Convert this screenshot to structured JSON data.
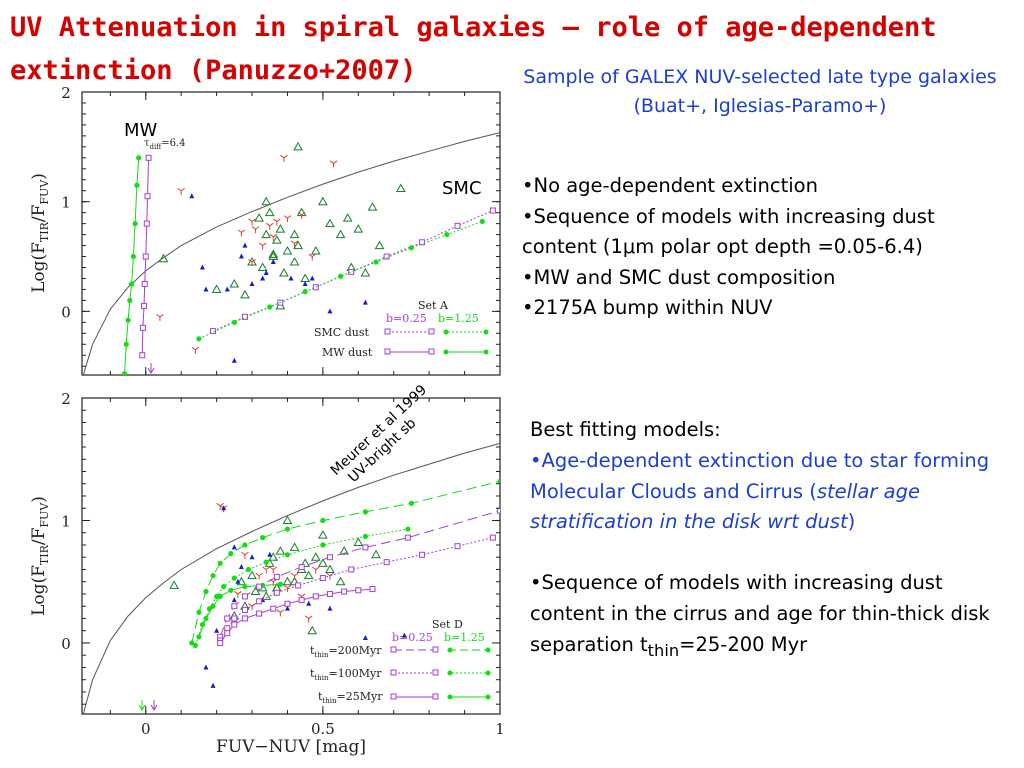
{
  "slide": {
    "title": "UV Attenuation in spiral galaxies – role of age-dependent extinction (Panuzzo+2007)",
    "subtitle": "Sample of GALEX NUV-selected late type galaxies (Buat+, Iglesias-Paramo+)",
    "bullets": [
      "•No age-dependent extinction",
      "•Sequence of models with increasing dust content (1μm polar opt depth =0.05-6.4)",
      "•MW and SMC dust composition",
      "•2175A bump within NUV"
    ],
    "best_heading": "Best fitting models:",
    "best_item1_a": "•Age-dependent extinction due to star forming Molecular Clouds and Cirrus (",
    "best_item1_b": "stellar age stratification in the disk wrt dust",
    "best_item1_c": ")",
    "best_item2_a": "•Sequence of models with increasing dust content in the cirrus and age for thin-thick disk separation t",
    "best_item2_sub": "thin",
    "best_item2_b": "=25-200 Myr"
  },
  "colors": {
    "title": "#d50000",
    "blue_text": "#1a3fd1",
    "green": "#13dd13",
    "purple": "#a63ed8",
    "triangle_green": "#137f2a",
    "dark_blue": "#1220c8",
    "red": "#e03a2e",
    "curve": "#555555"
  },
  "chart_data": [
    {
      "type": "scatter",
      "panel": "top",
      "ylabel_main": "Log(F",
      "ylabel_sub1": "TIR",
      "ylabel_mid": "/F",
      "ylabel_sub2": "FUV",
      "ylabel_end": ")",
      "xlim": [
        -0.18,
        1.0
      ],
      "ylim": [
        -0.58,
        2.0
      ],
      "yticks": [
        0,
        1,
        2
      ],
      "ytick_labels": [
        "0",
        "1",
        "2"
      ],
      "labels": {
        "mw": "MW",
        "smc": "SMC",
        "tau_pre": "τ",
        "tau_sub": "diff",
        "tau_post": "=6.4"
      },
      "legend": {
        "set": "Set A",
        "b1": "b=0.25",
        "b2": "b=1.25",
        "row1": "SMC dust",
        "row2": "MW dust"
      },
      "meurer_curve": {
        "x": [
          -0.18,
          -0.15,
          -0.1,
          -0.05,
          0.0,
          0.05,
          0.1,
          0.2,
          0.3,
          0.4,
          0.5,
          0.6,
          0.7,
          0.8,
          0.9,
          1.0
        ],
        "y": [
          -0.62,
          -0.3,
          0.02,
          0.22,
          0.37,
          0.49,
          0.6,
          0.77,
          0.91,
          1.04,
          1.16,
          1.27,
          1.37,
          1.46,
          1.55,
          1.63
        ]
      },
      "series": [
        {
          "name": "MW dust b=1.25",
          "color_key": "green",
          "marker": "dot",
          "dash": "",
          "x": [
            -0.06,
            -0.055,
            -0.05,
            -0.045,
            -0.04,
            -0.035,
            -0.03,
            -0.025,
            -0.02
          ],
          "y": [
            -0.57,
            -0.3,
            -0.08,
            0.1,
            0.25,
            0.5,
            0.8,
            1.15,
            1.4
          ]
        },
        {
          "name": "MW dust b=0.25",
          "color_key": "purple",
          "marker": "square",
          "dash": "",
          "x": [
            -0.01,
            -0.008,
            -0.005,
            -0.003,
            0.0,
            0.003,
            0.005,
            0.008
          ],
          "y": [
            -0.4,
            -0.15,
            0.05,
            0.25,
            0.5,
            0.8,
            1.05,
            1.4
          ]
        },
        {
          "name": "SMC dust b=0.25",
          "color_key": "purple",
          "marker": "square",
          "dash": "2 2",
          "x": [
            0.19,
            0.28,
            0.38,
            0.48,
            0.58,
            0.68,
            0.78,
            0.88,
            0.98
          ],
          "y": [
            -0.18,
            -0.05,
            0.08,
            0.22,
            0.36,
            0.5,
            0.63,
            0.78,
            0.92
          ]
        },
        {
          "name": "SMC dust b=1.25",
          "color_key": "green",
          "marker": "dot",
          "dash": "2 2",
          "x": [
            0.15,
            0.25,
            0.35,
            0.45,
            0.55,
            0.65,
            0.75,
            0.85,
            0.95
          ],
          "y": [
            -0.25,
            -0.1,
            0.04,
            0.18,
            0.32,
            0.45,
            0.58,
            0.7,
            0.82
          ]
        }
      ],
      "points": {
        "triangles_green": {
          "x": [
            0.05,
            0.36,
            0.43,
            0.32,
            0.35,
            0.34,
            0.37,
            0.38,
            0.4,
            0.43,
            0.3,
            0.33,
            0.36,
            0.39,
            0.42,
            0.45,
            0.48,
            0.52,
            0.55,
            0.58,
            0.62,
            0.66,
            0.2,
            0.25,
            0.28,
            0.44,
            0.5,
            0.57,
            0.6,
            0.64,
            0.72,
            0.42,
            0.38,
            0.34
          ],
          "y": [
            0.48,
            0.52,
            1.5,
            0.85,
            0.9,
            0.7,
            0.65,
            0.75,
            0.55,
            0.6,
            0.45,
            0.4,
            0.5,
            0.35,
            0.45,
            0.3,
            0.55,
            0.8,
            0.7,
            0.4,
            0.35,
            0.6,
            0.2,
            0.25,
            0.15,
            0.9,
            1.0,
            0.85,
            0.75,
            0.95,
            1.12,
            0.7,
            0.05,
            1.0
          ]
        },
        "tripods_red": {
          "x": [
            0.39,
            0.53,
            0.1,
            0.04,
            0.14,
            0.3,
            0.31,
            0.33,
            0.36,
            0.4,
            0.44,
            0.47,
            0.3,
            0.27,
            0.42,
            0.37,
            0.35
          ],
          "y": [
            1.4,
            1.35,
            1.1,
            -0.05,
            -0.35,
            0.82,
            0.75,
            0.6,
            0.68,
            0.85,
            0.88,
            0.5,
            0.45,
            0.72,
            0.62,
            0.82,
            0.78
          ]
        },
        "triangles_blue": {
          "x": [
            0.13,
            0.16,
            0.17,
            0.23,
            0.27,
            0.3,
            0.34,
            0.41,
            0.45,
            0.47,
            0.52,
            0.62,
            0.28,
            0.33,
            0.25,
            0.36
          ],
          "y": [
            1.05,
            0.4,
            0.2,
            0.2,
            0.5,
            0.25,
            0.35,
            0.3,
            0.25,
            0.3,
            0.0,
            0.08,
            0.6,
            0.3,
            -0.45,
            0.45
          ]
        }
      }
    },
    {
      "type": "scatter",
      "panel": "bottom",
      "ylabel_main": "Log(F",
      "ylabel_sub1": "TIR",
      "ylabel_mid": "/F",
      "ylabel_sub2": "FUV",
      "ylabel_end": ")",
      "xlabel": "FUV−NUV [mag]",
      "xlim": [
        -0.18,
        1.0
      ],
      "ylim": [
        -0.58,
        2.0
      ],
      "xticks": [
        0,
        0.5,
        1
      ],
      "xtick_labels": [
        "0",
        "0.5",
        "1"
      ],
      "yticks": [
        0,
        1,
        2
      ],
      "ytick_labels": [
        "0",
        "1",
        "2"
      ],
      "annotation": {
        "line1": "Meurer et al 1999",
        "line2": "UV-bright sb"
      },
      "legend": {
        "set": "Set D",
        "b1": "b=0.25",
        "b2": "b=1.25",
        "rows": [
          {
            "t": "t",
            "sub": "thin",
            "rest": "=200Myr"
          },
          {
            "t": "t",
            "sub": "thin",
            "rest": "=100Myr"
          },
          {
            "t": "t",
            "sub": "thin",
            "rest": "=25Myr"
          }
        ]
      },
      "meurer_curve": {
        "x": [
          -0.18,
          -0.15,
          -0.1,
          -0.05,
          0.0,
          0.05,
          0.1,
          0.2,
          0.3,
          0.4,
          0.5,
          0.6,
          0.7,
          0.8,
          0.9,
          1.0
        ],
        "y": [
          -0.62,
          -0.3,
          0.02,
          0.22,
          0.37,
          0.49,
          0.6,
          0.77,
          0.91,
          1.04,
          1.16,
          1.27,
          1.37,
          1.46,
          1.55,
          1.63
        ]
      },
      "series": [
        {
          "name": "t_thin=200Myr b=1.25",
          "color_key": "green",
          "marker": "dot",
          "dash": "10 5",
          "x": [
            0.13,
            0.15,
            0.17,
            0.19,
            0.21,
            0.24,
            0.28,
            0.33,
            0.4,
            0.5,
            0.62,
            0.75,
            1.0
          ],
          "y": [
            0.0,
            0.25,
            0.42,
            0.55,
            0.65,
            0.73,
            0.8,
            0.86,
            0.93,
            1.0,
            1.07,
            1.14,
            1.32
          ]
        },
        {
          "name": "t_thin=100Myr b=1.25",
          "color_key": "green",
          "marker": "dot",
          "dash": "2 2",
          "x": [
            0.14,
            0.16,
            0.18,
            0.2,
            0.22,
            0.25,
            0.29,
            0.34,
            0.4,
            0.5,
            0.62,
            0.74
          ],
          "y": [
            -0.02,
            0.15,
            0.28,
            0.38,
            0.46,
            0.53,
            0.6,
            0.66,
            0.72,
            0.8,
            0.87,
            0.93
          ]
        },
        {
          "name": "t_thin=25Myr b=1.25",
          "color_key": "green",
          "marker": "dot",
          "dash": "",
          "x": [
            0.15,
            0.17,
            0.19,
            0.21,
            0.24,
            0.28,
            0.33,
            0.38
          ],
          "y": [
            0.05,
            0.2,
            0.3,
            0.38,
            0.43,
            0.46,
            0.47,
            0.48
          ]
        },
        {
          "name": "t_thin=200Myr b=0.25",
          "color_key": "purple",
          "marker": "square",
          "dash": "10 5",
          "x": [
            0.21,
            0.23,
            0.25,
            0.28,
            0.32,
            0.37,
            0.44,
            0.52,
            0.62,
            0.74,
            1.0
          ],
          "y": [
            0.05,
            0.2,
            0.3,
            0.38,
            0.46,
            0.54,
            0.62,
            0.7,
            0.78,
            0.86,
            1.08
          ]
        },
        {
          "name": "t_thin=100Myr b=0.25",
          "color_key": "purple",
          "marker": "square",
          "dash": "2 2",
          "x": [
            0.21,
            0.23,
            0.25,
            0.28,
            0.32,
            0.37,
            0.43,
            0.5,
            0.58,
            0.68,
            0.78,
            0.88,
            0.98
          ],
          "y": [
            0.02,
            0.12,
            0.2,
            0.27,
            0.34,
            0.41,
            0.47,
            0.53,
            0.6,
            0.66,
            0.72,
            0.79,
            0.86
          ]
        },
        {
          "name": "t_thin=25Myr b=0.25",
          "color_key": "purple",
          "marker": "square",
          "dash": "",
          "x": [
            0.21,
            0.23,
            0.25,
            0.28,
            0.32,
            0.36,
            0.4,
            0.44,
            0.48,
            0.52,
            0.56,
            0.6,
            0.64
          ],
          "y": [
            0.0,
            0.08,
            0.15,
            0.2,
            0.24,
            0.28,
            0.32,
            0.35,
            0.38,
            0.4,
            0.42,
            0.43,
            0.44
          ]
        }
      ],
      "points": {
        "triangles_green": {
          "x": [
            0.08,
            0.4,
            0.36,
            0.42,
            0.38,
            0.44,
            0.5,
            0.35,
            0.3,
            0.27,
            0.33,
            0.37,
            0.4,
            0.45,
            0.48,
            0.52,
            0.56,
            0.6,
            0.55,
            0.65,
            0.25,
            0.28,
            0.31,
            0.34,
            0.37,
            0.42,
            0.46,
            0.5,
            0.47
          ],
          "y": [
            0.47,
            1.0,
            0.7,
            0.78,
            0.75,
            0.6,
            0.88,
            0.65,
            0.55,
            0.5,
            0.45,
            0.45,
            0.5,
            0.65,
            0.7,
            0.6,
            0.75,
            0.82,
            0.5,
            0.72,
            0.22,
            0.3,
            0.42,
            0.38,
            0.45,
            0.5,
            0.55,
            0.65,
            0.1
          ]
        },
        "tripods_red": {
          "x": [
            0.21,
            0.28,
            0.32,
            0.36,
            0.4,
            0.44,
            0.48,
            0.52,
            0.3,
            0.38,
            0.46,
            0.26,
            0.34,
            0.42,
            0.36,
            0.22
          ],
          "y": [
            1.12,
            0.72,
            0.55,
            0.5,
            0.45,
            0.38,
            0.6,
            0.55,
            0.3,
            0.25,
            0.2,
            0.4,
            0.6,
            0.55,
            0.6,
            1.1
          ]
        },
        "triangles_blue": {
          "x": [
            0.22,
            0.3,
            0.35,
            0.25,
            0.27,
            0.26,
            0.33,
            0.4,
            0.62,
            0.73,
            0.25,
            0.2,
            0.46,
            0.52,
            0.17,
            0.19
          ],
          "y": [
            1.1,
            0.7,
            0.72,
            0.78,
            0.62,
            0.5,
            0.35,
            0.28,
            0.04,
            0.06,
            0.35,
            0.1,
            0.32,
            0.28,
            -0.2,
            -0.35
          ]
        }
      }
    }
  ]
}
